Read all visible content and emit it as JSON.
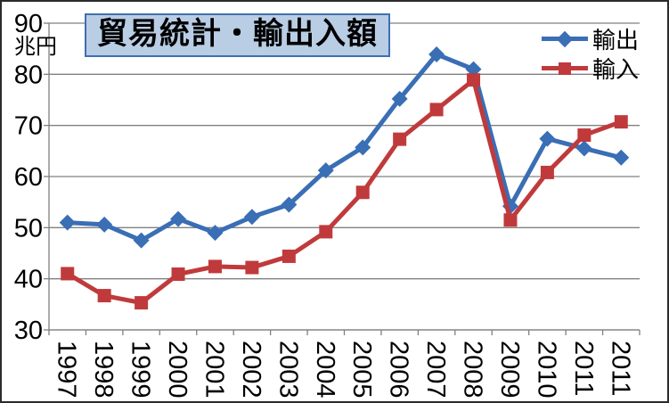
{
  "chart_data": {
    "type": "line",
    "title": "貿易統計・輸出入額",
    "ylabel": "兆円",
    "xlabel": "",
    "categories": [
      "1997",
      "1998",
      "1999",
      "2000",
      "2001",
      "2002",
      "2003",
      "2004",
      "2005",
      "2006",
      "2007",
      "2008",
      "2009",
      "2010",
      "2011",
      "2011"
    ],
    "series": [
      {
        "name": "輸出",
        "marker": "diamond",
        "color": "#3A6EB5",
        "values": [
          51.0,
          50.6,
          47.5,
          51.7,
          49.0,
          52.1,
          54.5,
          61.2,
          65.7,
          75.2,
          83.9,
          81.0,
          54.2,
          67.4,
          65.5,
          63.7
        ]
      },
      {
        "name": "輸入",
        "marker": "square",
        "color": "#C03A3C",
        "values": [
          41.0,
          36.7,
          35.3,
          40.9,
          42.4,
          42.2,
          44.4,
          49.2,
          56.9,
          67.3,
          73.1,
          78.9,
          51.5,
          60.8,
          68.1,
          70.7
        ]
      }
    ],
    "ylim": [
      30,
      90
    ],
    "y_ticks": [
      30,
      40,
      50,
      60,
      70,
      80,
      90
    ],
    "grid": true,
    "legend_position": "top-right",
    "colors": {
      "gridline": "#808080",
      "axis": "#808080",
      "tick_text": "#000000",
      "title_bg": "#B9CDE5",
      "title_border": "#3F6FB0"
    }
  }
}
